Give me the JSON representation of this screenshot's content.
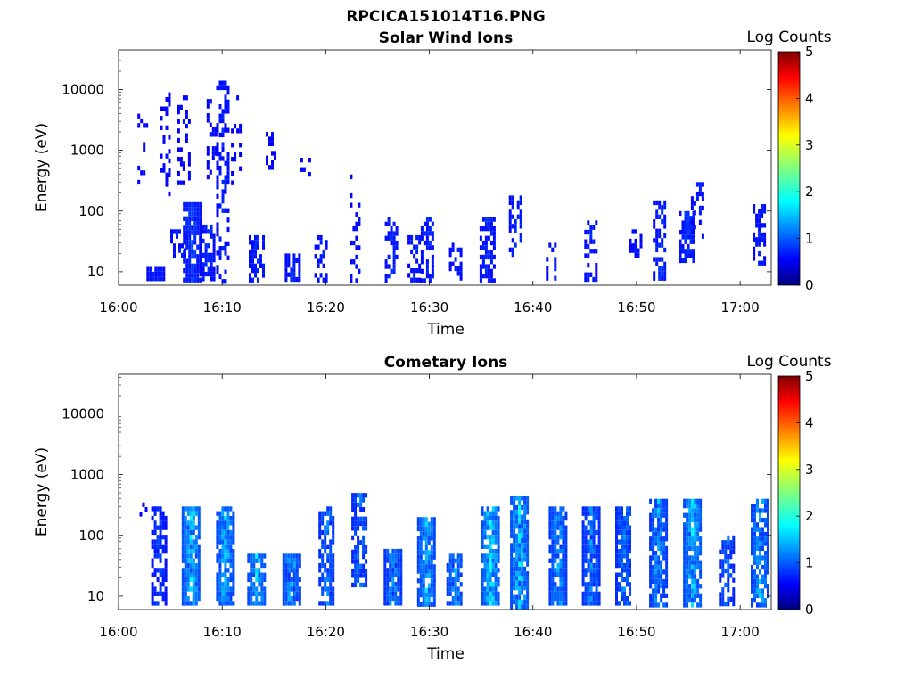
{
  "figure_title": "RPCICA151014T16.PNG",
  "chart_data": [
    {
      "type": "heatmap",
      "title": "Solar Wind Ions",
      "xlabel": "Time",
      "ylabel": "Energy (eV)",
      "y_scale": "log",
      "ylim": [
        6,
        45000
      ],
      "yticks": [
        {
          "v": 10,
          "label": "10"
        },
        {
          "v": 100,
          "label": "100"
        },
        {
          "v": 1000,
          "label": "1000"
        },
        {
          "v": 10000,
          "label": "10000"
        }
      ],
      "xlim": [
        "16:00",
        "17:03"
      ],
      "xticks": [
        "16:00",
        "16:10",
        "16:20",
        "16:30",
        "16:40",
        "16:50",
        "17:00"
      ],
      "colorbar": {
        "label": "Log Counts",
        "min": 0,
        "max": 5,
        "ticks": [
          "0",
          "1",
          "2",
          "3",
          "4",
          "5"
        ],
        "colormap": "jet"
      },
      "bursts": [
        {
          "t": "16:02.3",
          "emin": 200,
          "emax": 4000,
          "level": 0.15,
          "density": 0.25
        },
        {
          "t": "16:03.5",
          "emin": 6,
          "emax": 12,
          "level": 0.3,
          "density": 0.9
        },
        {
          "t": "16:04.5",
          "emin": 200,
          "emax": 9000,
          "level": 0.15,
          "density": 0.3
        },
        {
          "t": "16:05.7",
          "emin": 20,
          "emax": 50,
          "level": 0.3,
          "density": 0.7
        },
        {
          "t": "16:06.2",
          "emin": 300,
          "emax": 8000,
          "level": 0.15,
          "density": 0.35
        },
        {
          "t": "16:07.0",
          "emin": 6,
          "emax": 140,
          "level": 0.45,
          "density": 0.85
        },
        {
          "t": "16:08.5",
          "emin": 6,
          "emax": 60,
          "level": 0.35,
          "density": 0.7
        },
        {
          "t": "16:09.0",
          "emin": 300,
          "emax": 7000,
          "level": 0.15,
          "density": 0.3
        },
        {
          "t": "16:10.0",
          "emin": 6,
          "emax": 14000,
          "level": 0.3,
          "density": 0.45
        },
        {
          "t": "16:11.3",
          "emin": 300,
          "emax": 8000,
          "level": 0.12,
          "density": 0.2
        },
        {
          "t": "16:13.3",
          "emin": 6,
          "emax": 40,
          "level": 0.35,
          "density": 0.75
        },
        {
          "t": "16:14.7",
          "emin": 500,
          "emax": 2000,
          "level": 0.12,
          "density": 0.3
        },
        {
          "t": "16:16.8",
          "emin": 8,
          "emax": 20,
          "level": 0.35,
          "density": 0.8
        },
        {
          "t": "16:18.0",
          "emin": 400,
          "emax": 900,
          "level": 0.12,
          "density": 0.2
        },
        {
          "t": "16:19.5",
          "emin": 6,
          "emax": 40,
          "level": 0.3,
          "density": 0.5
        },
        {
          "t": "16:22.8",
          "emin": 6,
          "emax": 400,
          "level": 0.2,
          "density": 0.25
        },
        {
          "t": "16:26.3",
          "emin": 6,
          "emax": 80,
          "level": 0.35,
          "density": 0.5
        },
        {
          "t": "16:28.5",
          "emin": 6,
          "emax": 40,
          "level": 0.3,
          "density": 0.5
        },
        {
          "t": "16:29.8",
          "emin": 6,
          "emax": 80,
          "level": 0.35,
          "density": 0.55
        },
        {
          "t": "16:32.5",
          "emin": 6,
          "emax": 30,
          "level": 0.3,
          "density": 0.5
        },
        {
          "t": "16:35.5",
          "emin": 6,
          "emax": 80,
          "level": 0.35,
          "density": 0.6
        },
        {
          "t": "16:38.3",
          "emin": 20,
          "emax": 180,
          "level": 0.35,
          "density": 0.55
        },
        {
          "t": "16:41.8",
          "emin": 6,
          "emax": 30,
          "level": 0.3,
          "density": 0.4
        },
        {
          "t": "16:45.5",
          "emin": 6,
          "emax": 70,
          "level": 0.3,
          "density": 0.4
        },
        {
          "t": "16:49.8",
          "emin": 20,
          "emax": 50,
          "level": 0.25,
          "density": 0.35
        },
        {
          "t": "16:52.2",
          "emin": 6,
          "emax": 150,
          "level": 0.35,
          "density": 0.55
        },
        {
          "t": "16:54.8",
          "emin": 15,
          "emax": 100,
          "level": 0.4,
          "density": 0.7
        },
        {
          "t": "16:55.8",
          "emin": 40,
          "emax": 300,
          "level": 0.3,
          "density": 0.4
        },
        {
          "t": "17:01.8",
          "emin": 15,
          "emax": 130,
          "level": 0.3,
          "density": 0.5
        }
      ]
    },
    {
      "type": "heatmap",
      "title": "Cometary Ions",
      "xlabel": "Time",
      "ylabel": "Energy (eV)",
      "y_scale": "log",
      "ylim": [
        6,
        45000
      ],
      "yticks": [
        {
          "v": 10,
          "label": "10"
        },
        {
          "v": 100,
          "label": "100"
        },
        {
          "v": 1000,
          "label": "1000"
        },
        {
          "v": 10000,
          "label": "10000"
        }
      ],
      "xlim": [
        "16:00",
        "17:03"
      ],
      "xticks": [
        "16:00",
        "16:10",
        "16:20",
        "16:30",
        "16:40",
        "16:50",
        "17:00"
      ],
      "colorbar": {
        "label": "Log Counts",
        "min": 0,
        "max": 5,
        "ticks": [
          "0",
          "1",
          "2",
          "3",
          "4",
          "5"
        ],
        "colormap": "jet"
      },
      "bursts": [
        {
          "t": "16:02.5",
          "emin": 200,
          "emax": 500,
          "level": 0.2,
          "density": 0.25
        },
        {
          "t": "16:03.8",
          "emin": 6,
          "emax": 300,
          "level": 0.45,
          "density": 0.6
        },
        {
          "t": "16:06.9",
          "emin": 6,
          "emax": 300,
          "level": 1.3,
          "density": 0.9
        },
        {
          "t": "16:10.2",
          "emin": 6,
          "emax": 300,
          "level": 1.15,
          "density": 0.85
        },
        {
          "t": "16:13.2",
          "emin": 6,
          "emax": 50,
          "level": 1.25,
          "density": 0.85
        },
        {
          "t": "16:16.6",
          "emin": 6,
          "emax": 50,
          "level": 1.1,
          "density": 0.85
        },
        {
          "t": "16:20.0",
          "emin": 6,
          "emax": 300,
          "level": 0.8,
          "density": 0.7
        },
        {
          "t": "16:23.2",
          "emin": 15,
          "emax": 500,
          "level": 0.75,
          "density": 0.75
        },
        {
          "t": "16:26.4",
          "emin": 6,
          "emax": 60,
          "level": 0.9,
          "density": 0.9
        },
        {
          "t": "16:29.6",
          "emin": 6,
          "emax": 200,
          "level": 1.2,
          "density": 0.85
        },
        {
          "t": "16:32.4",
          "emin": 6,
          "emax": 50,
          "level": 1.0,
          "density": 0.8
        },
        {
          "t": "16:35.8",
          "emin": 6,
          "emax": 300,
          "level": 1.35,
          "density": 0.9
        },
        {
          "t": "16:38.6",
          "emin": 6,
          "emax": 450,
          "level": 1.3,
          "density": 0.9
        },
        {
          "t": "16:42.3",
          "emin": 6,
          "emax": 300,
          "level": 1.0,
          "density": 0.85
        },
        {
          "t": "16:45.5",
          "emin": 6,
          "emax": 300,
          "level": 0.85,
          "density": 0.85
        },
        {
          "t": "16:48.7",
          "emin": 6,
          "emax": 300,
          "level": 0.8,
          "density": 0.8
        },
        {
          "t": "16:52.0",
          "emin": 6,
          "emax": 400,
          "level": 1.0,
          "density": 0.85
        },
        {
          "t": "16:55.3",
          "emin": 6,
          "emax": 400,
          "level": 1.3,
          "density": 0.9
        },
        {
          "t": "16:58.6",
          "emin": 6,
          "emax": 100,
          "level": 0.7,
          "density": 0.6
        },
        {
          "t": "17:01.8",
          "emin": 6,
          "emax": 400,
          "level": 1.1,
          "density": 0.85
        }
      ]
    }
  ]
}
